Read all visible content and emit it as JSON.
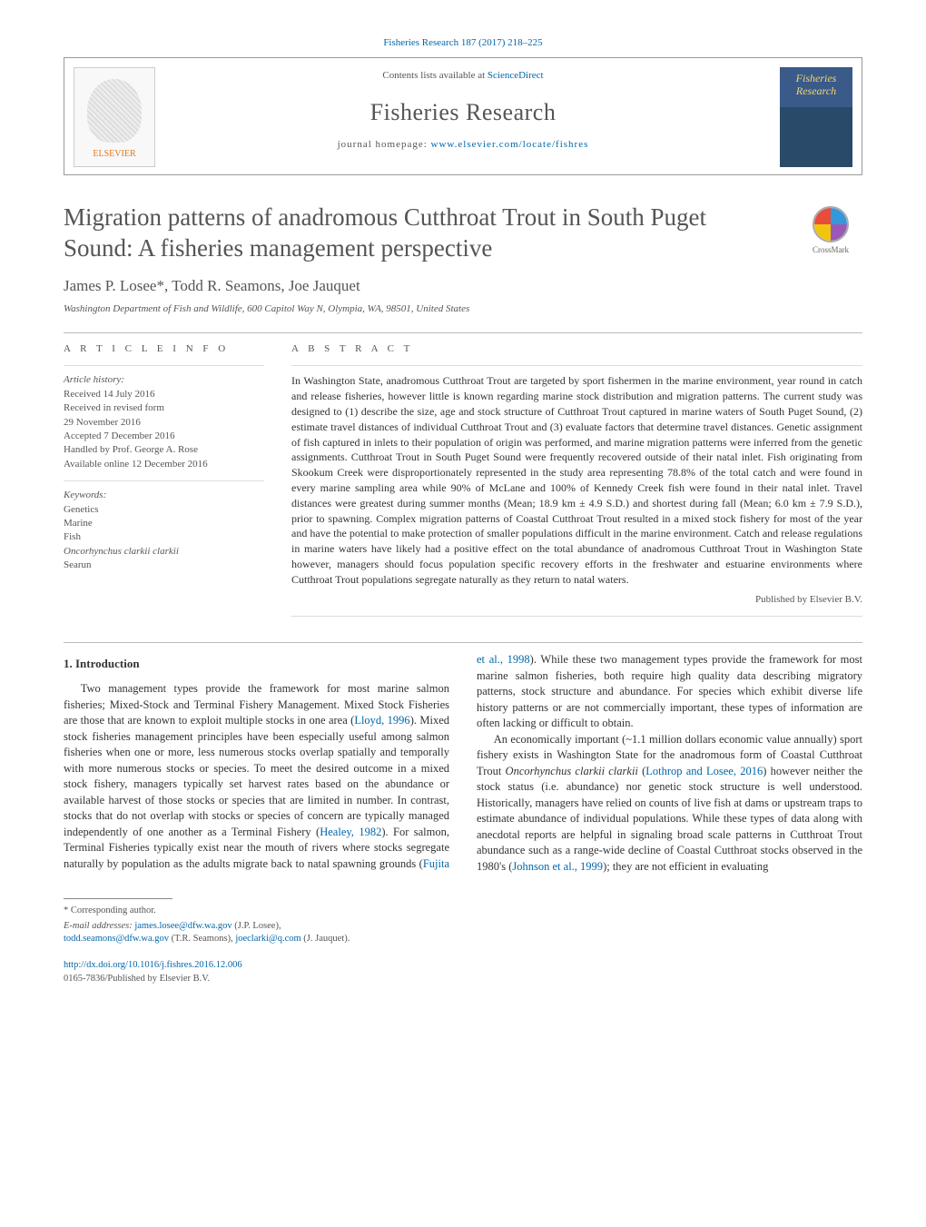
{
  "journalHeader": {
    "citation": "Fisheries Research 187 (2017) 218–225",
    "contentsLine": "Contents lists available at ",
    "contentsLink": "ScienceDirect",
    "journalName": "Fisheries Research",
    "homepageLabel": "journal homepage: ",
    "homepageUrl": "www.elsevier.com/locate/fishres",
    "elsevierLabel": "ELSEVIER",
    "coverTitle": "Fisheries Research"
  },
  "crossmark": {
    "label": "CrossMark"
  },
  "article": {
    "title": "Migration patterns of anadromous Cutthroat Trout in South Puget Sound: A fisheries management perspective",
    "authors": "James P. Losee*, Todd R. Seamons, Joe Jauquet",
    "affiliation": "Washington Department of Fish and Wildlife, 600 Capitol Way N, Olympia, WA, 98501, United States"
  },
  "articleInfo": {
    "heading": "a r t i c l e   i n f o",
    "historyLabel": "Article history:",
    "history": [
      "Received 14 July 2016",
      "Received in revised form",
      "29 November 2016",
      "Accepted 7 December 2016",
      "Handled by Prof. George A. Rose",
      "Available online 12 December 2016"
    ],
    "keywordsLabel": "Keywords:",
    "keywords": [
      "Genetics",
      "Marine",
      "Fish",
      "Oncorhynchus clarkii clarkii",
      "Searun"
    ]
  },
  "abstract": {
    "heading": "a b s t r a c t",
    "text": "In Washington State, anadromous Cutthroat Trout are targeted by sport fishermen in the marine environment, year round in catch and release fisheries, however little is known regarding marine stock distribution and migration patterns. The current study was designed to (1) describe the size, age and stock structure of Cutthroat Trout captured in marine waters of South Puget Sound, (2) estimate travel distances of individual Cutthroat Trout and (3) evaluate factors that determine travel distances. Genetic assignment of fish captured in inlets to their population of origin was performed, and marine migration patterns were inferred from the genetic assignments. Cutthroat Trout in South Puget Sound were frequently recovered outside of their natal inlet. Fish originating from Skookum Creek were disproportionately represented in the study area representing 78.8% of the total catch and were found in every marine sampling area while 90% of McLane and 100% of Kennedy Creek fish were found in their natal inlet. Travel distances were greatest during summer months (Mean; 18.9 km ± 4.9 S.D.) and shortest during fall (Mean; 6.0 km ± 7.9 S.D.), prior to spawning. Complex migration patterns of Coastal Cutthroat Trout resulted in a mixed stock fishery for most of the year and have the potential to make protection of smaller populations difficult in the marine environment. Catch and release regulations in marine waters have likely had a positive effect on the total abundance of anadromous Cutthroat Trout in Washington State however, managers should focus population specific recovery efforts in the freshwater and estuarine environments where Cutthroat Trout populations segregate naturally as they return to natal waters.",
    "publishedBy": "Published by Elsevier B.V."
  },
  "intro": {
    "heading": "1.  Introduction",
    "p1a": "Two management types provide the framework for most marine salmon fisheries; Mixed-Stock and Terminal Fishery Management. Mixed Stock Fisheries are those that are known to exploit multiple stocks in one area (",
    "c1": "Lloyd, 1996",
    "p1b": "). Mixed stock fisheries management principles have been especially useful among salmon fisheries when one or more, less numerous stocks overlap spatially and temporally with more numerous stocks or species. To meet the desired outcome in a mixed stock fishery, managers typically set harvest rates based on the abundance or available harvest of those stocks or species that are limited in number. In contrast, stocks that do not overlap with stocks or species of concern are typically managed independently of one another as a Terminal Fishery (",
    "c2": "Healey, 1982",
    "p1c": "). For salmon, Terminal Fisheries typically exist near the mouth of rivers where stocks segregate naturally by population as the adults migrate back to natal spawning grounds (",
    "c3": "Fujita et al., 1998",
    "p1d": "). While these two management types provide the framework for most marine salmon fisheries, both require high quality data describing migratory patterns, stock structure and abundance. For species which exhibit diverse life history patterns or are not commercially important, these types of information are often lacking or difficult to obtain.",
    "p2a": "An economically important (~1.1 million dollars economic value annually) sport fishery exists in Washington State for the anadromous form of Coastal Cutthroat Trout ",
    "p2b": "Oncorhynchus clarkii clarkii",
    "p2c": " (",
    "c4": "Lothrop and Losee, 2016",
    "p2d": ") however neither the stock status (i.e. abundance) nor genetic stock structure is well understood. Historically, managers have relied on counts of live fish at dams or upstream traps to estimate abundance of individual populations. While these types of data along with anecdotal reports are helpful in signaling broad scale patterns in Cutthroat Trout abundance such as a range-wide decline of Coastal Cutthroat stocks observed in the 1980's (",
    "c5": "Johnson et al., 1999",
    "p2e": "); they are not efficient in evaluating"
  },
  "footer": {
    "corrLabel": "* Corresponding author.",
    "emailLabel": "E-mail addresses: ",
    "emails": [
      {
        "addr": "james.losee@dfw.wa.gov",
        "who": " (J.P. Losee),"
      },
      {
        "addr": "todd.seamons@dfw.wa.gov",
        "who": " (T.R. Seamons), "
      },
      {
        "addr": "joeclarki@q.com",
        "who": " (J. Jauquet)."
      }
    ],
    "doi": "http://dx.doi.org/10.1016/j.fishres.2016.12.006",
    "copyright": "0165-7836/Published by Elsevier B.V."
  },
  "colors": {
    "link": "#0066aa",
    "text": "#333333",
    "muted": "#555555",
    "rule": "#bbbbbb",
    "elsevierOrange": "#e67817"
  }
}
